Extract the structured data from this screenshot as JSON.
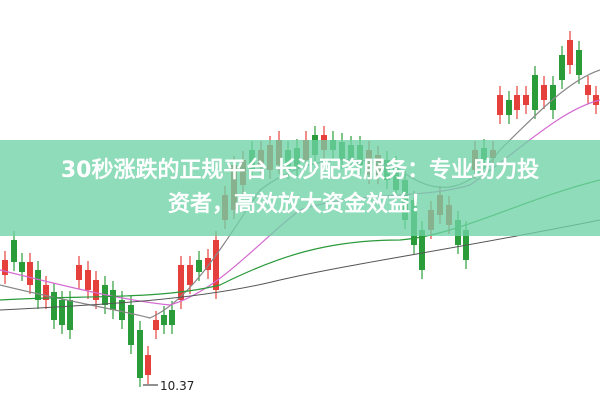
{
  "banner": {
    "lines": [
      "30秒涨跌的正规平台 长沙配资服务：专业助力投",
      "资者，高效放大资金效益！"
    ]
  },
  "annotation": {
    "low_label": "10.37"
  }
}
